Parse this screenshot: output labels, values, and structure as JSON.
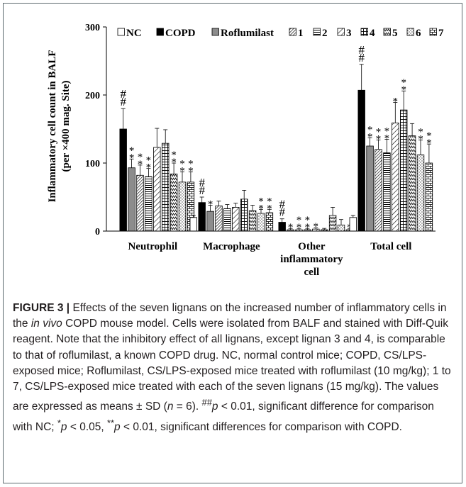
{
  "chart_data": {
    "type": "bar",
    "ylabel_line1": "Inflammatory cell count in BALF",
    "ylabel_line2": "(per ×400 mag. Site)",
    "ylim": [
      0,
      300
    ],
    "yticks": [
      "0",
      "100",
      "200",
      "300"
    ],
    "categories": [
      {
        "label": [
          "Neutrophil"
        ]
      },
      {
        "label": [
          "Macrophage"
        ]
      },
      {
        "label": [
          "Other",
          "inflammatory",
          "cell"
        ]
      },
      {
        "label": [
          "Total cell"
        ]
      }
    ],
    "series": [
      {
        "name": "NC",
        "pattern": "white",
        "values": [
          0,
          20,
          0,
          20
        ],
        "sd": [
          0,
          3,
          0,
          3
        ],
        "marks": [
          "",
          "",
          "",
          ""
        ]
      },
      {
        "name": "COPD",
        "pattern": "black",
        "values": [
          150,
          42,
          13,
          207
        ],
        "sd": [
          30,
          8,
          5,
          38
        ],
        "marks": [
          "##",
          "##",
          "##",
          "##"
        ]
      },
      {
        "name": "Roflumilast",
        "pattern": "gray",
        "values": [
          93,
          29,
          2,
          125
        ],
        "sd": [
          13,
          9,
          2,
          12
        ],
        "marks": [
          "**",
          "*",
          "*",
          "**"
        ]
      },
      {
        "name": "1",
        "pattern": "diagdense",
        "values": [
          82,
          37,
          2,
          120
        ],
        "sd": [
          15,
          7,
          2,
          14
        ],
        "marks": [
          "**",
          "",
          "**",
          "**"
        ]
      },
      {
        "name": "2",
        "pattern": "hlines",
        "values": [
          80,
          33,
          2,
          115
        ],
        "sd": [
          12,
          6,
          2,
          20
        ],
        "marks": [
          "**",
          "",
          "**",
          "**"
        ]
      },
      {
        "name": "3",
        "pattern": "diagsparse",
        "values": [
          123,
          35,
          3,
          159
        ],
        "sd": [
          28,
          6,
          2,
          30
        ],
        "marks": [
          "",
          "",
          "*",
          "*"
        ]
      },
      {
        "name": "4",
        "pattern": "grid",
        "values": [
          129,
          47,
          2,
          178
        ],
        "sd": [
          20,
          13,
          2,
          28
        ],
        "marks": [
          "",
          "",
          "",
          "**"
        ]
      },
      {
        "name": "5",
        "pattern": "zigzag",
        "values": [
          84,
          30,
          23,
          140
        ],
        "sd": [
          16,
          8,
          12,
          18
        ],
        "marks": [
          "**",
          "",
          "",
          ""
        ]
      },
      {
        "name": "6",
        "pattern": "dots",
        "values": [
          72,
          26,
          9,
          112
        ],
        "sd": [
          15,
          6,
          8,
          22
        ],
        "marks": [
          "**",
          "**",
          "",
          "**"
        ]
      },
      {
        "name": "7",
        "pattern": "bricks",
        "values": [
          72,
          27,
          2,
          100
        ],
        "sd": [
          15,
          5,
          2,
          28
        ],
        "marks": [
          "**",
          "**",
          "*",
          "**"
        ]
      }
    ]
  },
  "caption": {
    "label": "FIGURE 3 |",
    "part1": " Effects of the seven lignans on the increased number of inflammatory cells in the ",
    "invivo": "in vivo",
    "part2": " COPD mouse model. Cells were isolated from BALF and stained with Diff-Quik reagent. Note that the inhibitory effect of all lignans, except lignan 3 and 4, is comparable to that of roflumilast, a known COPD drug. NC, normal control mice; COPD, CS/LPS-exposed mice; Roflumilast, CS/LPS-exposed mice treated with roflumilast (10 mg/kg); 1 to 7, CS/LPS-exposed mice treated with each of the seven lignans (15 mg/kg). The values are expressed as means ± SD (",
    "n": "n",
    "part3": " = 6). ",
    "hash": "##",
    "p1": "p",
    "part4": " < 0.01, significant difference for comparison with NC; ",
    "star": "*",
    "p2": "p",
    "part5": " < 0.05, ",
    "star2": "**",
    "p3": "p",
    "part6": " < 0.01, significant differences for comparison with COPD."
  },
  "colors": {
    "frame": "#5d6a6f",
    "bar_black": "#000000",
    "bar_gray": "#8c8c8c",
    "text": "#231f20"
  }
}
